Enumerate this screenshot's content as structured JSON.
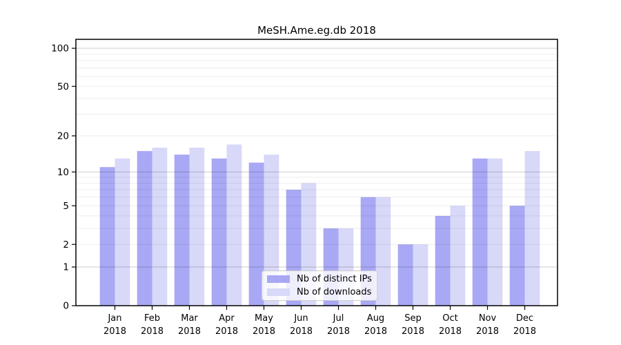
{
  "chart_data": {
    "type": "bar",
    "title": "MeSH.Ame.eg.db 2018",
    "xlabel": "",
    "ylabel": "",
    "categories": [
      {
        "month": "Jan",
        "year": "2018"
      },
      {
        "month": "Feb",
        "year": "2018"
      },
      {
        "month": "Mar",
        "year": "2018"
      },
      {
        "month": "Apr",
        "year": "2018"
      },
      {
        "month": "May",
        "year": "2018"
      },
      {
        "month": "Jun",
        "year": "2018"
      },
      {
        "month": "Jul",
        "year": "2018"
      },
      {
        "month": "Aug",
        "year": "2018"
      },
      {
        "month": "Sep",
        "year": "2018"
      },
      {
        "month": "Oct",
        "year": "2018"
      },
      {
        "month": "Nov",
        "year": "2018"
      },
      {
        "month": "Dec",
        "year": "2018"
      }
    ],
    "series": [
      {
        "name": "Nb of distinct IPs",
        "color": "#a8a8f4",
        "values": [
          11,
          15,
          14,
          13,
          12,
          7,
          3,
          6,
          2,
          4,
          13,
          5
        ]
      },
      {
        "name": "Nb of downloads",
        "color": "#d8d8f8",
        "values": [
          13,
          16,
          16,
          17,
          14,
          8,
          3,
          6,
          2,
          5,
          13,
          15
        ]
      }
    ],
    "y_axis": {
      "scale": "log1p",
      "ylim": [
        0,
        118
      ],
      "tick_labels": [
        100,
        50,
        20,
        10,
        5,
        2,
        1,
        0
      ],
      "major_gridlines": [
        1,
        10,
        100
      ],
      "minor_gridlines": [
        2,
        3,
        4,
        5,
        6,
        7,
        8,
        9,
        20,
        30,
        40,
        50,
        60,
        70,
        80,
        90
      ],
      "grid": "on"
    },
    "legend": {
      "position": "lower center",
      "frame": true
    },
    "colors": {
      "spine": "#000000",
      "tick_label": "#000000",
      "background": "#ffffff"
    }
  }
}
